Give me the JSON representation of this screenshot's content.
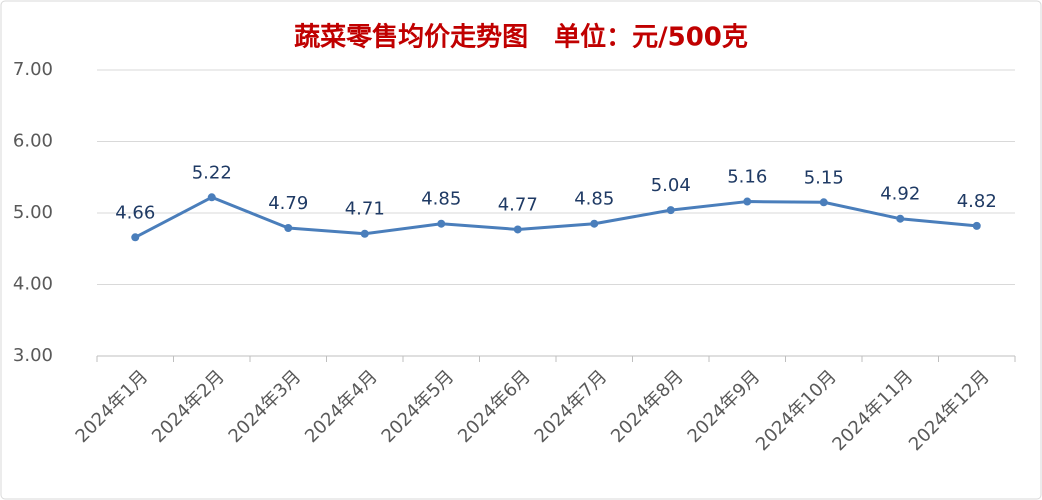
{
  "chart_data": {
    "type": "line",
    "title": "蔬菜零售均价走势图　单位：元/500克",
    "categories": [
      "2024年1月",
      "2024年2月",
      "2024年3月",
      "2024年4月",
      "2024年5月",
      "2024年6月",
      "2024年7月",
      "2024年8月",
      "2024年9月",
      "2024年10月",
      "2024年11月",
      "2024年12月"
    ],
    "values": [
      4.66,
      5.22,
      4.79,
      4.71,
      4.85,
      4.77,
      4.85,
      5.04,
      5.16,
      5.15,
      4.92,
      4.82
    ],
    "color": "#4a7ebb",
    "ylim": [
      3,
      7
    ],
    "yticks": [
      {
        "value": 3,
        "label": "3.00"
      },
      {
        "value": 4,
        "label": "4.00"
      },
      {
        "value": 5,
        "label": "5.00"
      },
      {
        "value": 6,
        "label": "6.00"
      },
      {
        "value": 7,
        "label": "7.00"
      }
    ],
    "grid": true
  }
}
